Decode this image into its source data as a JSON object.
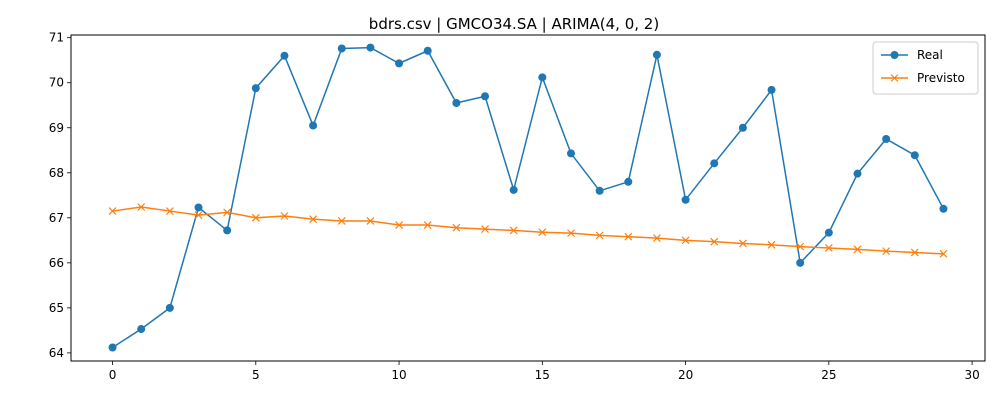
{
  "chart_data": {
    "type": "line",
    "title": "bdrs.csv | GMCO34.SA | ARIMA(4, 0, 2)",
    "xlabel": "",
    "ylabel": "",
    "xlim": [
      -1.45,
      30.45
    ],
    "ylim": [
      63.82,
      71.06
    ],
    "xticks": [
      0,
      5,
      10,
      15,
      20,
      25,
      30
    ],
    "yticks": [
      64,
      65,
      66,
      67,
      68,
      69,
      70,
      71
    ],
    "legend_position": "top-right",
    "grid": false,
    "x": [
      0,
      1,
      2,
      3,
      4,
      5,
      6,
      7,
      8,
      9,
      10,
      11,
      12,
      13,
      14,
      15,
      16,
      17,
      18,
      19,
      20,
      21,
      22,
      23,
      24,
      25,
      26,
      27,
      28,
      29
    ],
    "series": [
      {
        "name": "Real",
        "color": "#1f77b4",
        "marker": "circle",
        "values": [
          64.12,
          64.53,
          65.0,
          67.23,
          66.72,
          69.88,
          70.6,
          69.05,
          70.76,
          70.78,
          70.43,
          70.71,
          69.55,
          69.7,
          67.62,
          70.12,
          68.43,
          67.6,
          67.8,
          70.62,
          67.4,
          68.21,
          69.0,
          69.84,
          66.0,
          66.67,
          67.98,
          68.75,
          68.39,
          67.2
        ]
      },
      {
        "name": "Previsto",
        "color": "#ff7f0e",
        "marker": "x",
        "values": [
          67.15,
          67.24,
          67.15,
          67.06,
          67.12,
          67.0,
          67.04,
          66.97,
          66.93,
          66.93,
          66.84,
          66.84,
          66.78,
          66.75,
          66.72,
          66.68,
          66.66,
          66.61,
          66.58,
          66.55,
          66.5,
          66.47,
          66.43,
          66.4,
          66.36,
          66.33,
          66.3,
          66.26,
          66.23,
          66.2
        ]
      }
    ]
  }
}
